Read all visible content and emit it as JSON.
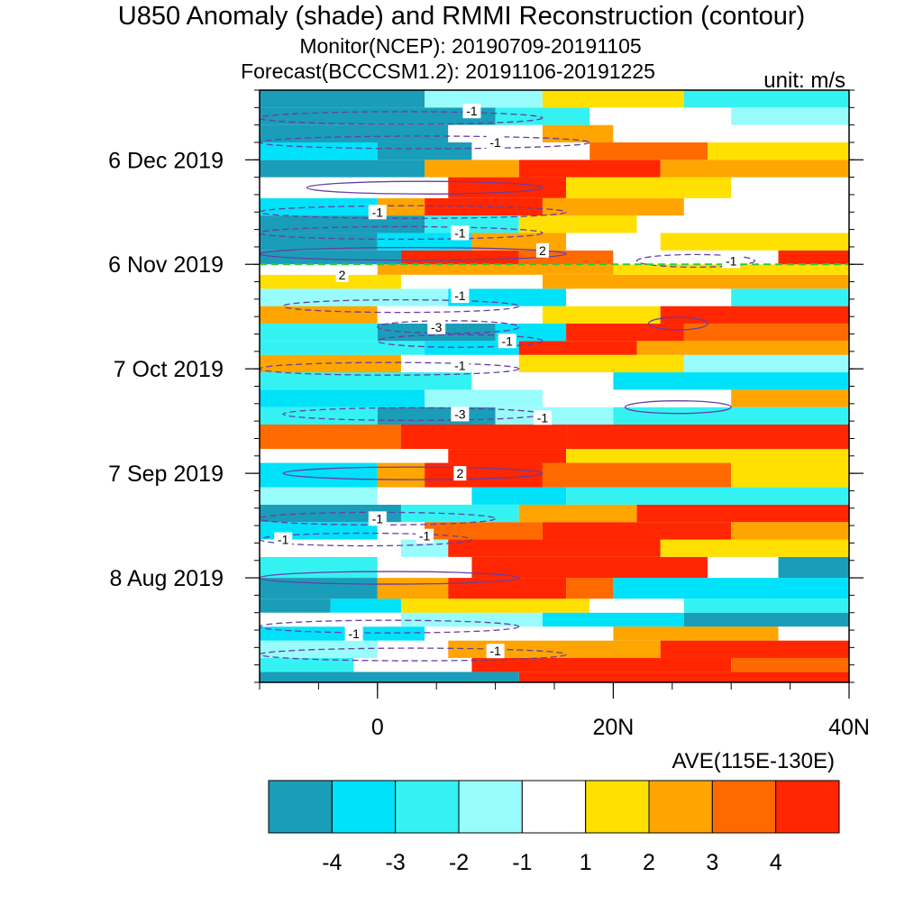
{
  "title": "U850 Anomaly (shade) and RMMI Reconstruction (contour)",
  "subtitle_monitor": "Monitor(NCEP): 20190709-20191105",
  "subtitle_forecast": "Forecast(BCCCSM1.2): 20191106-20191225",
  "unit_label": "unit: m/s",
  "region_label": "AVE(115E-130E)",
  "chart_data": {
    "type": "heatmap",
    "title": "U850 Anomaly (shade) and RMMI Reconstruction (contour)",
    "xlabel": "AVE(115E-130E)",
    "x_ticks": [
      "0",
      "20N",
      "40N"
    ],
    "x_tick_values": [
      0,
      20,
      40
    ],
    "xlim": [
      -10,
      40
    ],
    "y_ticks": [
      "8 Aug 2019",
      "7 Sep 2019",
      "7 Oct 2019",
      "6 Nov 2019",
      "6 Dec 2019"
    ],
    "y_tick_days": [
      30,
      60,
      90,
      120,
      150
    ],
    "ylim_days": [
      0,
      170
    ],
    "ylim_dates": [
      "2019-07-09",
      "2019-12-25"
    ],
    "forecast_start_day": 120,
    "colorbar": {
      "levels": [
        "-4",
        "-3",
        "-2",
        "-1",
        "1",
        "2",
        "3",
        "4"
      ],
      "colors": [
        "#1a9db8",
        "#00e1fa",
        "#34f2f2",
        "#99fcfc",
        "#ffffff",
        "#ffe000",
        "#ffa500",
        "#ff6a00",
        "#ff2600"
      ]
    },
    "bands": [
      {
        "lat0": -10,
        "lat1": 40,
        "d0": 0,
        "d1": 3,
        "pieces": [
          [
            -10,
            12,
            0
          ],
          [
            12,
            40,
            8
          ]
        ]
      },
      {
        "lat0": -10,
        "lat1": 40,
        "d0": 3,
        "d1": 7,
        "pieces": [
          [
            -10,
            -2,
            2
          ],
          [
            -2,
            8,
            4
          ],
          [
            8,
            30,
            8
          ],
          [
            30,
            40,
            7
          ]
        ]
      },
      {
        "lat0": -10,
        "lat1": 40,
        "d0": 7,
        "d1": 12,
        "pieces": [
          [
            -10,
            0,
            3
          ],
          [
            0,
            6,
            4
          ],
          [
            6,
            24,
            6
          ],
          [
            24,
            40,
            8
          ]
        ]
      },
      {
        "lat0": -10,
        "lat1": 40,
        "d0": 12,
        "d1": 16,
        "pieces": [
          [
            -10,
            4,
            1
          ],
          [
            4,
            20,
            4
          ],
          [
            20,
            34,
            6
          ],
          [
            34,
            40,
            4
          ]
        ]
      },
      {
        "lat0": -10,
        "lat1": 40,
        "d0": 16,
        "d1": 20,
        "pieces": [
          [
            -10,
            2,
            4
          ],
          [
            2,
            14,
            3
          ],
          [
            14,
            26,
            1
          ],
          [
            26,
            40,
            0
          ]
        ]
      },
      {
        "lat0": -10,
        "lat1": 40,
        "d0": 20,
        "d1": 24,
        "pieces": [
          [
            -10,
            -4,
            0
          ],
          [
            -4,
            2,
            1
          ],
          [
            2,
            18,
            5
          ],
          [
            18,
            26,
            4
          ],
          [
            26,
            40,
            2
          ]
        ]
      },
      {
        "lat0": -10,
        "lat1": 40,
        "d0": 24,
        "d1": 30,
        "pieces": [
          [
            -10,
            0,
            0
          ],
          [
            0,
            6,
            6
          ],
          [
            6,
            16,
            8
          ],
          [
            16,
            20,
            7
          ],
          [
            20,
            40,
            1
          ]
        ]
      },
      {
        "lat0": -10,
        "lat1": 40,
        "d0": 30,
        "d1": 36,
        "pieces": [
          [
            -10,
            0,
            2
          ],
          [
            0,
            8,
            4
          ],
          [
            8,
            28,
            8
          ],
          [
            28,
            34,
            4
          ],
          [
            34,
            40,
            0
          ]
        ]
      },
      {
        "lat0": -10,
        "lat1": 40,
        "d0": 36,
        "d1": 41,
        "pieces": [
          [
            -10,
            2,
            4
          ],
          [
            2,
            6,
            3
          ],
          [
            6,
            24,
            8
          ],
          [
            24,
            40,
            5
          ]
        ]
      },
      {
        "lat0": -10,
        "lat1": 40,
        "d0": 41,
        "d1": 46,
        "pieces": [
          [
            -10,
            0,
            1
          ],
          [
            0,
            4,
            4
          ],
          [
            4,
            14,
            7
          ],
          [
            14,
            30,
            8
          ],
          [
            30,
            40,
            6
          ]
        ]
      },
      {
        "lat0": -10,
        "lat1": 40,
        "d0": 46,
        "d1": 51,
        "pieces": [
          [
            -10,
            2,
            0
          ],
          [
            2,
            12,
            2
          ],
          [
            12,
            22,
            6
          ],
          [
            22,
            40,
            8
          ]
        ]
      },
      {
        "lat0": -10,
        "lat1": 40,
        "d0": 51,
        "d1": 56,
        "pieces": [
          [
            -10,
            0,
            3
          ],
          [
            0,
            8,
            4
          ],
          [
            8,
            16,
            1
          ],
          [
            16,
            40,
            2
          ]
        ]
      },
      {
        "lat0": -10,
        "lat1": 40,
        "d0": 56,
        "d1": 63,
        "pieces": [
          [
            -10,
            0,
            1
          ],
          [
            0,
            4,
            6
          ],
          [
            4,
            14,
            8
          ],
          [
            14,
            30,
            7
          ],
          [
            30,
            40,
            5
          ]
        ]
      },
      {
        "lat0": -10,
        "lat1": 40,
        "d0": 63,
        "d1": 67,
        "pieces": [
          [
            -10,
            6,
            4
          ],
          [
            6,
            16,
            8
          ],
          [
            16,
            40,
            5
          ]
        ]
      },
      {
        "lat0": -10,
        "lat1": 40,
        "d0": 67,
        "d1": 74,
        "pieces": [
          [
            -10,
            2,
            7
          ],
          [
            2,
            16,
            8
          ],
          [
            16,
            40,
            8
          ]
        ]
      },
      {
        "lat0": -10,
        "lat1": 40,
        "d0": 74,
        "d1": 79,
        "pieces": [
          [
            -10,
            0,
            2
          ],
          [
            0,
            10,
            0
          ],
          [
            10,
            20,
            3
          ],
          [
            20,
            40,
            2
          ]
        ]
      },
      {
        "lat0": -10,
        "lat1": 40,
        "d0": 79,
        "d1": 84,
        "pieces": [
          [
            -10,
            4,
            1
          ],
          [
            4,
            14,
            3
          ],
          [
            14,
            30,
            4
          ],
          [
            30,
            40,
            6
          ]
        ]
      },
      {
        "lat0": -10,
        "lat1": 40,
        "d0": 84,
        "d1": 89,
        "pieces": [
          [
            -10,
            8,
            2
          ],
          [
            8,
            20,
            4
          ],
          [
            20,
            40,
            1
          ]
        ]
      },
      {
        "lat0": -10,
        "lat1": 40,
        "d0": 89,
        "d1": 94,
        "pieces": [
          [
            -10,
            2,
            6
          ],
          [
            2,
            12,
            4
          ],
          [
            12,
            26,
            5
          ],
          [
            26,
            40,
            3
          ]
        ]
      },
      {
        "lat0": -10,
        "lat1": 40,
        "d0": 94,
        "d1": 98,
        "pieces": [
          [
            -10,
            4,
            2
          ],
          [
            4,
            12,
            1
          ],
          [
            12,
            22,
            8
          ],
          [
            22,
            40,
            6
          ]
        ]
      },
      {
        "lat0": -10,
        "lat1": 40,
        "d0": 98,
        "d1": 103,
        "pieces": [
          [
            -10,
            0,
            2
          ],
          [
            0,
            10,
            0
          ],
          [
            10,
            16,
            1
          ],
          [
            16,
            26,
            8
          ],
          [
            26,
            40,
            7
          ]
        ]
      },
      {
        "lat0": -10,
        "lat1": 40,
        "d0": 103,
        "d1": 108,
        "pieces": [
          [
            -10,
            0,
            6
          ],
          [
            0,
            14,
            4
          ],
          [
            14,
            24,
            5
          ],
          [
            24,
            40,
            8
          ]
        ]
      },
      {
        "lat0": -10,
        "lat1": 40,
        "d0": 108,
        "d1": 113,
        "pieces": [
          [
            -10,
            6,
            3
          ],
          [
            6,
            16,
            1
          ],
          [
            16,
            30,
            4
          ],
          [
            30,
            40,
            2
          ]
        ]
      },
      {
        "lat0": -10,
        "lat1": 40,
        "d0": 113,
        "d1": 117,
        "pieces": [
          [
            -10,
            2,
            5
          ],
          [
            2,
            14,
            4
          ],
          [
            14,
            40,
            6
          ]
        ]
      },
      {
        "lat0": -10,
        "lat1": 40,
        "d0": 117,
        "d1": 120,
        "pieces": [
          [
            -10,
            0,
            4
          ],
          [
            0,
            20,
            6
          ],
          [
            20,
            40,
            5
          ]
        ]
      },
      {
        "lat0": -10,
        "lat1": 40,
        "d0": 120,
        "d1": 124,
        "pieces": [
          [
            -10,
            2,
            0
          ],
          [
            2,
            12,
            8
          ],
          [
            12,
            20,
            7
          ],
          [
            20,
            34,
            4
          ],
          [
            34,
            40,
            8
          ]
        ]
      },
      {
        "lat0": -10,
        "lat1": 40,
        "d0": 124,
        "d1": 129,
        "pieces": [
          [
            -10,
            0,
            0
          ],
          [
            0,
            8,
            1
          ],
          [
            8,
            16,
            6
          ],
          [
            16,
            24,
            4
          ],
          [
            24,
            40,
            5
          ]
        ]
      },
      {
        "lat0": -10,
        "lat1": 40,
        "d0": 129,
        "d1": 134,
        "pieces": [
          [
            -10,
            4,
            0
          ],
          [
            4,
            12,
            2
          ],
          [
            12,
            22,
            5
          ],
          [
            22,
            40,
            4
          ]
        ]
      },
      {
        "lat0": -10,
        "lat1": 40,
        "d0": 134,
        "d1": 139,
        "pieces": [
          [
            -10,
            0,
            1
          ],
          [
            0,
            4,
            6
          ],
          [
            4,
            14,
            8
          ],
          [
            14,
            26,
            6
          ],
          [
            26,
            40,
            4
          ]
        ]
      },
      {
        "lat0": -10,
        "lat1": 40,
        "d0": 139,
        "d1": 145,
        "pieces": [
          [
            -10,
            6,
            4
          ],
          [
            6,
            16,
            8
          ],
          [
            16,
            30,
            5
          ],
          [
            30,
            40,
            4
          ]
        ]
      },
      {
        "lat0": -10,
        "lat1": 40,
        "d0": 145,
        "d1": 150,
        "pieces": [
          [
            -10,
            4,
            0
          ],
          [
            4,
            12,
            6
          ],
          [
            12,
            24,
            8
          ],
          [
            24,
            40,
            6
          ]
        ]
      },
      {
        "lat0": -10,
        "lat1": 40,
        "d0": 150,
        "d1": 155,
        "pieces": [
          [
            -10,
            0,
            1
          ],
          [
            0,
            8,
            0
          ],
          [
            8,
            18,
            4
          ],
          [
            18,
            28,
            7
          ],
          [
            28,
            40,
            5
          ]
        ]
      },
      {
        "lat0": -10,
        "lat1": 40,
        "d0": 155,
        "d1": 160,
        "pieces": [
          [
            -10,
            6,
            0
          ],
          [
            6,
            14,
            4
          ],
          [
            14,
            20,
            6
          ],
          [
            20,
            40,
            4
          ]
        ]
      },
      {
        "lat0": -10,
        "lat1": 40,
        "d0": 160,
        "d1": 165,
        "pieces": [
          [
            -10,
            10,
            0
          ],
          [
            10,
            18,
            2
          ],
          [
            18,
            30,
            4
          ],
          [
            30,
            40,
            3
          ]
        ]
      },
      {
        "lat0": -10,
        "lat1": 40,
        "d0": 165,
        "d1": 170,
        "pieces": [
          [
            -10,
            4,
            0
          ],
          [
            4,
            14,
            3
          ],
          [
            14,
            26,
            5
          ],
          [
            26,
            40,
            2
          ]
        ]
      }
    ],
    "contours": [
      {
        "value": "-1",
        "kind": "neg",
        "lat0": -10,
        "lat1": 16,
        "day": 8
      },
      {
        "value": "-1",
        "kind": "neg",
        "lat0": -10,
        "lat1": 12,
        "day": 16
      },
      {
        "value": "",
        "kind": "pos",
        "lat0": -10,
        "lat1": 12,
        "day": 30
      },
      {
        "value": "-1",
        "kind": "neg",
        "lat0": -10,
        "lat1": 8,
        "day": 41
      },
      {
        "value": "-1",
        "kind": "neg",
        "lat0": -10,
        "lat1": 10,
        "day": 47
      },
      {
        "value": "2",
        "kind": "pos",
        "lat0": -8,
        "lat1": 14,
        "day": 60
      },
      {
        "value": "-3",
        "kind": "neg",
        "lat0": -8,
        "lat1": 14,
        "day": 77
      },
      {
        "value": "",
        "kind": "pos",
        "lat0": 21,
        "lat1": 30,
        "day": 79
      },
      {
        "value": "-1",
        "kind": "neg",
        "lat0": -10,
        "lat1": 12,
        "day": 90
      },
      {
        "value": "-1",
        "kind": "neg",
        "lat0": 0,
        "lat1": 14,
        "day": 98
      },
      {
        "value": "-3",
        "kind": "neg",
        "lat0": 0,
        "lat1": 12,
        "day": 102
      },
      {
        "value": "",
        "kind": "pos",
        "lat0": 23,
        "lat1": 28,
        "day": 103
      },
      {
        "value": "-1",
        "kind": "neg",
        "lat0": -8,
        "lat1": 12,
        "day": 108
      },
      {
        "value": "2",
        "kind": "pos",
        "lat0": -10,
        "lat1": 16,
        "day": 123
      },
      {
        "value": "-1",
        "kind": "neg",
        "lat0": 22,
        "lat1": 32,
        "day": 121
      },
      {
        "value": "-1",
        "kind": "neg",
        "lat0": -10,
        "lat1": 14,
        "day": 129
      },
      {
        "value": "-1",
        "kind": "neg",
        "lat0": -10,
        "lat1": 16,
        "day": 135
      },
      {
        "value": "",
        "kind": "pos",
        "lat0": -6,
        "lat1": 14,
        "day": 142
      },
      {
        "value": "-1",
        "kind": "neg",
        "lat0": -10,
        "lat1": 18,
        "day": 155
      },
      {
        "value": "-1",
        "kind": "neg",
        "lat0": -10,
        "lat1": 14,
        "day": 162
      }
    ],
    "label_positions": [
      {
        "text": "-1",
        "lat": 8,
        "day": 164
      },
      {
        "text": "-1",
        "lat": 10,
        "day": 155
      },
      {
        "text": "-1",
        "lat": 0,
        "day": 135
      },
      {
        "text": "-1",
        "lat": 7,
        "day": 129
      },
      {
        "text": "2",
        "lat": 14,
        "day": 124
      },
      {
        "text": "2",
        "lat": -3,
        "day": 117
      },
      {
        "text": "-1",
        "lat": 30,
        "day": 121
      },
      {
        "text": "-1",
        "lat": 7,
        "day": 111
      },
      {
        "text": "-3",
        "lat": 5,
        "day": 102
      },
      {
        "text": "-1",
        "lat": 11,
        "day": 98
      },
      {
        "text": "-1",
        "lat": 7,
        "day": 91
      },
      {
        "text": "-3",
        "lat": 7,
        "day": 77
      },
      {
        "text": "-1",
        "lat": 14,
        "day": 76
      },
      {
        "text": "2",
        "lat": 7,
        "day": 60
      },
      {
        "text": "-1",
        "lat": 0,
        "day": 47
      },
      {
        "text": "-1",
        "lat": -8,
        "day": 41
      },
      {
        "text": "-1",
        "lat": 4,
        "day": 42
      },
      {
        "text": "-1",
        "lat": -2,
        "day": 14
      },
      {
        "text": "-1",
        "lat": 10,
        "day": 9
      }
    ]
  }
}
